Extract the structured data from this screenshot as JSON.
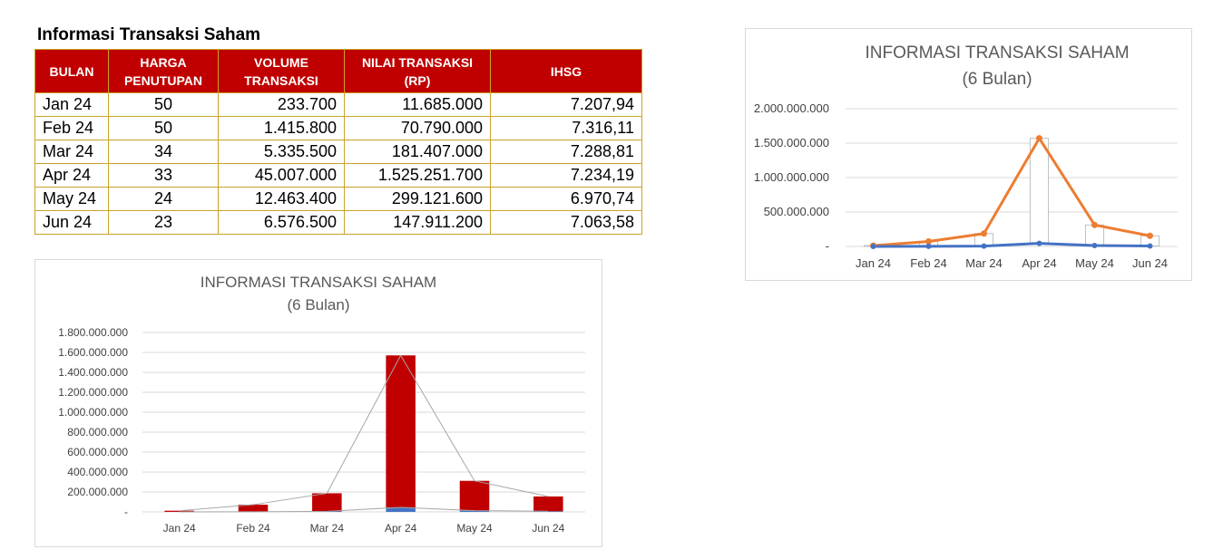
{
  "table": {
    "title": "Informasi Transaksi Saham",
    "headers": [
      [
        "BULAN"
      ],
      [
        "HARGA",
        "PENUTUPAN"
      ],
      [
        "VOLUME",
        "TRANSAKSI"
      ],
      [
        "NILAI TRANSAKSI",
        "(RP)"
      ],
      [
        "IHSG"
      ]
    ],
    "rows": [
      [
        "Jan 24",
        "50",
        "233.700",
        "11.685.000",
        "7.207,94"
      ],
      [
        "Feb 24",
        "50",
        "1.415.800",
        "70.790.000",
        "7.316,11"
      ],
      [
        "Mar 24",
        "34",
        "5.335.500",
        "181.407.000",
        "7.288,81"
      ],
      [
        "Apr 24",
        "33",
        "45.007.000",
        "1.525.251.700",
        "7.234,19"
      ],
      [
        "May 24",
        "24",
        "12.463.400",
        "299.121.600",
        "6.970,74"
      ],
      [
        "Jun 24",
        "23",
        "6.576.500",
        "147.911.200",
        "7.063,58"
      ]
    ]
  },
  "colors": {
    "header_bg": "#c00000",
    "header_text": "#ffffff",
    "border": "#c9a227",
    "red_series": "#c00000",
    "blue_series": "#4472c4",
    "orange_series": "#ed7d31",
    "grid": "#d9d9d9"
  },
  "chart_data": [
    {
      "type": "bar",
      "title": "INFORMASI TRANSAKSI SAHAM",
      "subtitle": "(6 Bulan)",
      "categories": [
        "Jan 24",
        "Feb 24",
        "Mar 24",
        "Apr 24",
        "May 24",
        "Jun 24"
      ],
      "yticks": [
        "-",
        "200.000.000",
        "400.000.000",
        "600.000.000",
        "800.000.000",
        "1.000.000.000",
        "1.200.000.000",
        "1.400.000.000",
        "1.600.000.000",
        "1.800.000.000"
      ],
      "ylim": [
        0,
        1800000000
      ],
      "stacked": true,
      "series": [
        {
          "values": [
            233700,
            1415800,
            5335500,
            45007000,
            12463400,
            6576500
          ],
          "color": "#4472c4"
        },
        {
          "values": [
            11685000,
            70790000,
            181407000,
            1525251700,
            299121600,
            147911200
          ],
          "color": "#c00000"
        }
      ],
      "grid": true,
      "legend": "none"
    },
    {
      "type": "line",
      "title": "INFORMASI TRANSAKSI SAHAM",
      "subtitle": "(6 Bulan)",
      "categories": [
        "Jan 24",
        "Feb 24",
        "Mar 24",
        "Apr 24",
        "May 24",
        "Jun 24"
      ],
      "yticks": [
        "-",
        "500.000.000",
        "1.000.000.000",
        "1.500.000.000",
        "2.000.000.000"
      ],
      "ylim": [
        0,
        2000000000
      ],
      "stacked": true,
      "series": [
        {
          "values": [
            233700,
            1415800,
            5335500,
            45007000,
            12463400,
            6576500
          ],
          "color": "#4472c4"
        },
        {
          "values": [
            11685000,
            70790000,
            181407000,
            1525251700,
            299121600,
            147911200
          ],
          "color": "#ed7d31"
        }
      ],
      "grid": true,
      "legend": "none"
    }
  ]
}
